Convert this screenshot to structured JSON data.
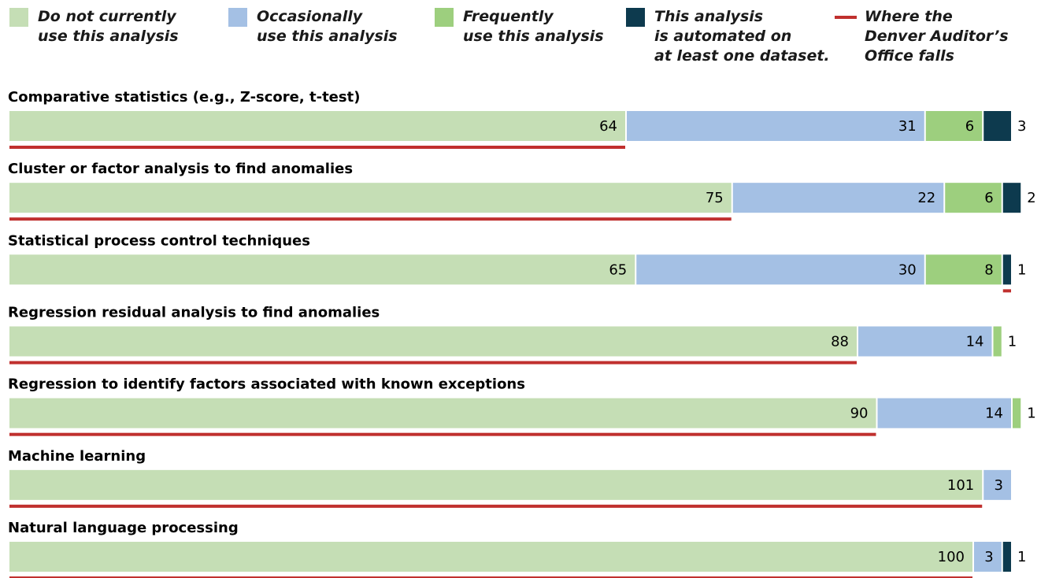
{
  "chart_data": {
    "type": "bar",
    "orientation": "horizontal",
    "stacked": true,
    "categories": [
      "Comparative statistics (e.g., Z-score, t-test)",
      "Cluster or factor analysis to find anomalies",
      "Statistical process control techniques",
      "Regression residual analysis to find anomalies",
      "Regression to identify factors associated with known exceptions",
      "Machine learning",
      "Natural language processing"
    ],
    "series": [
      {
        "name": "Do not currently\nuse this analysis",
        "color": "#c5deb5",
        "values": [
          64,
          75,
          65,
          88,
          90,
          101,
          100
        ]
      },
      {
        "name": "Occasionally\nuse this analysis",
        "color": "#a4c0e4",
        "values": [
          31,
          22,
          30,
          14,
          14,
          3,
          3
        ]
      },
      {
        "name": "Frequently\nuse this analysis",
        "color": "#9dcf7e",
        "values": [
          6,
          6,
          8,
          1,
          1,
          null,
          null
        ]
      },
      {
        "name": "This analysis\nis automated on\nat least one dataset.",
        "color": "#0d3a4e",
        "values": [
          3,
          2,
          1,
          null,
          null,
          null,
          1
        ]
      }
    ],
    "denver": {
      "name": "Where the\nDenver Auditor’s\nOffice falls",
      "color": "#c0302e",
      "series": [
        "Do not currently\nuse this analysis",
        "Do not currently\nuse this analysis",
        "This analysis\nis automated on\nat least one dataset.",
        "Do not currently\nuse this analysis",
        "Do not currently\nuse this analysis",
        "Do not currently\nuse this analysis",
        "Do not currently\nuse this analysis"
      ]
    }
  }
}
